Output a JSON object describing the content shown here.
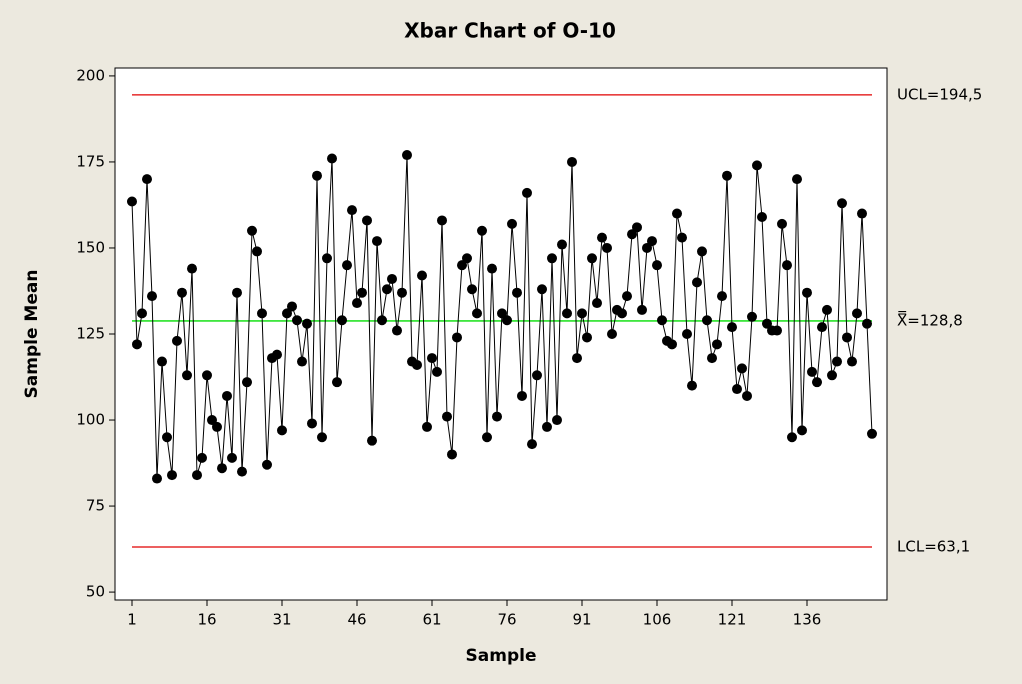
{
  "chart_data": {
    "type": "line",
    "title": "Xbar Chart of O-10",
    "x_label": "Sample",
    "y_label": "Sample Mean",
    "x": [
      1,
      2,
      3,
      4,
      5,
      6,
      7,
      8,
      9,
      10,
      11,
      12,
      13,
      14,
      15,
      16,
      17,
      18,
      19,
      20,
      21,
      22,
      23,
      24,
      25,
      26,
      27,
      28,
      29,
      30,
      31,
      32,
      33,
      34,
      35,
      36,
      37,
      38,
      39,
      40,
      41,
      42,
      43,
      44,
      45,
      46,
      47,
      48,
      49,
      50,
      51,
      52,
      53,
      54,
      55,
      56,
      57,
      58,
      59,
      60,
      61,
      62,
      63,
      64,
      65,
      66,
      67,
      68,
      69,
      70,
      71,
      72,
      73,
      74,
      75,
      76,
      77,
      78,
      79,
      80,
      81,
      82,
      83,
      84,
      85,
      86,
      87,
      88,
      89,
      90,
      91,
      92,
      93,
      94,
      95,
      96,
      97,
      98,
      99,
      100,
      101,
      102,
      103,
      104,
      105,
      106,
      107,
      108,
      109,
      110,
      111,
      112,
      113,
      114,
      115,
      116,
      117,
      118,
      119,
      120,
      121,
      122,
      123,
      124,
      125,
      126,
      127,
      128,
      129,
      130,
      131,
      132,
      133,
      134,
      135,
      136,
      137,
      138,
      139,
      140,
      141,
      142,
      143,
      144,
      145,
      146,
      147,
      148,
      149
    ],
    "series": [
      {
        "name": "Sample Mean",
        "color": "#000000",
        "values": [
          163.5,
          122,
          131,
          170,
          136,
          83,
          117,
          95,
          84,
          123,
          137,
          113,
          144,
          84,
          89,
          113,
          100,
          98,
          86,
          107,
          89,
          137,
          85,
          111,
          155,
          149,
          131,
          87,
          118,
          119,
          97,
          131,
          133,
          129,
          117,
          128,
          99,
          171,
          95,
          147,
          176,
          111,
          129,
          145,
          161,
          134,
          137,
          158,
          94,
          152,
          129,
          138,
          141,
          126,
          137,
          177,
          117,
          116,
          142,
          98,
          118,
          114,
          158,
          101,
          90,
          124,
          145,
          147,
          138,
          131,
          155,
          95,
          144,
          101,
          131,
          129,
          157,
          137,
          107,
          166,
          93,
          113,
          138,
          98,
          147,
          100,
          151,
          131,
          175,
          118,
          131,
          124,
          147,
          134,
          153,
          150,
          125,
          132,
          131,
          136,
          154,
          156,
          132,
          150,
          152,
          145,
          129,
          123,
          122,
          160,
          153,
          125,
          110,
          140,
          149,
          129,
          118,
          122,
          136,
          171,
          127,
          109,
          115,
          107,
          130,
          174,
          159,
          128,
          126,
          126,
          157,
          145,
          95,
          170,
          97,
          137,
          114,
          111,
          127,
          132,
          113,
          117,
          163,
          124,
          117,
          131,
          160,
          128,
          96
        ]
      }
    ],
    "reference_lines": [
      {
        "value": 194.5,
        "label": "UCL=194,5",
        "color": "#e00000"
      },
      {
        "value": 128.8,
        "label": "X̿=128,8",
        "color": "#00dd00"
      },
      {
        "value": 63.1,
        "label": "LCL=63,1",
        "color": "#e00000"
      }
    ],
    "xlim": [
      -2.4,
      152
    ],
    "xticks": [
      1,
      16,
      31,
      46,
      61,
      76,
      91,
      106,
      121,
      136
    ],
    "ylim": [
      47.7,
      202.3
    ],
    "yticks": [
      50,
      75,
      100,
      125,
      150,
      175,
      200
    ]
  }
}
